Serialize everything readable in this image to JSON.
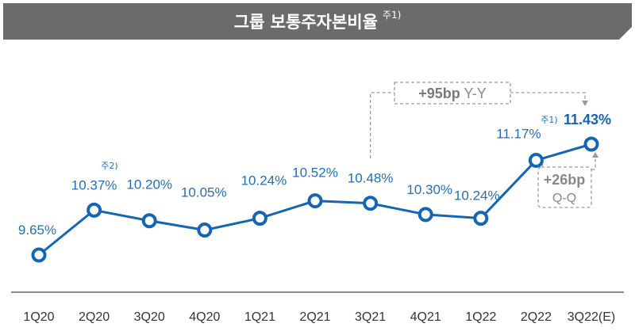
{
  "header": {
    "title": "그룹 보통주자본비율",
    "note": "주1)"
  },
  "chart_data": {
    "type": "line",
    "title": "그룹 보통주자본비율",
    "categories": [
      "1Q20",
      "2Q20",
      "3Q20",
      "4Q20",
      "1Q21",
      "2Q21",
      "3Q21",
      "4Q21",
      "1Q22",
      "2Q22",
      "3Q22(E)"
    ],
    "series": [
      {
        "values": [
          9.65,
          10.37,
          10.2,
          10.05,
          10.24,
          10.52,
          10.48,
          10.3,
          10.24,
          11.17,
          11.43
        ]
      }
    ],
    "data_labels": [
      "9.65%",
      "10.37%",
      "10.20%",
      "10.05%",
      "10.24%",
      "10.52%",
      "10.48%",
      "10.30%",
      "10.24%",
      "11.17%",
      "11.43%"
    ],
    "point_notes": {
      "1": "주2)",
      "10": "주1)"
    },
    "annotations": {
      "yoy": {
        "value": "+95bp",
        "suffix": "Y-Y"
      },
      "qoq": {
        "value": "+26bp",
        "suffix": "Q-Q"
      }
    },
    "colors": {
      "line": "#1565b5",
      "label": "#1f6fba",
      "banner": "#6b6b6b",
      "annotation": "#999999",
      "axis": "#555555"
    }
  }
}
